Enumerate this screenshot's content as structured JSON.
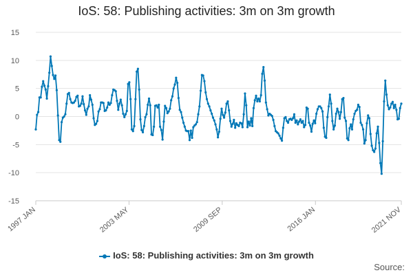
{
  "chart_data": {
    "type": "line",
    "title": "IoS: 58: Publishing activities: 3m on 3m growth",
    "xlabel": "",
    "ylabel": "",
    "ylim": [
      -15,
      15
    ],
    "yticks": [
      15,
      10,
      5,
      0,
      -5,
      -10,
      -15
    ],
    "xticks": [
      "1997 JAN",
      "2003 MAY",
      "2009 SEP",
      "2016 JAN",
      "2021 NOV"
    ],
    "x_start": "1997 JAN",
    "x_end": "2021 NOV",
    "grid": true,
    "legend_position": "bottom",
    "series": [
      {
        "name": "IoS: 58: Publishing activities: 3m on 3m growth",
        "color": "#0077b6",
        "values": [
          -2.3,
          0.3,
          0.8,
          3.4,
          3.4,
          5.3,
          6.3,
          5.5,
          4.8,
          3.2,
          5.4,
          7.8,
          10.7,
          9.0,
          7.4,
          6.7,
          7.3,
          4.7,
          0.2,
          -4.2,
          -4.5,
          -1.0,
          -0.2,
          0.0,
          0.4,
          2.3,
          4.0,
          4.2,
          3.1,
          2.5,
          2.4,
          2.5,
          2.8,
          3.5,
          3.7,
          1.8,
          1.9,
          2.3,
          3.6,
          2.2,
          1.1,
          0.3,
          1.4,
          1.8,
          3.8,
          3.0,
          2.1,
          -0.3,
          -1.5,
          -1.3,
          -0.8,
          0.9,
          1.3,
          2.5,
          2.5,
          2.4,
          1.0,
          1.1,
          1.6,
          2.5,
          2.1,
          2.4,
          3.8,
          4.8,
          4.7,
          4.5,
          2.8,
          1.2,
          2.3,
          3.0,
          2.0,
          0.5,
          -0.1,
          0.4,
          1.0,
          5.8,
          6.1,
          3.1,
          -2.3,
          -2.6,
          -1.7,
          3.1,
          8.0,
          8.5,
          4.8,
          -0.5,
          -2.4,
          -2.8,
          -1.7,
          -0.1,
          0.4,
          2.1,
          3.2,
          2.0,
          -3.2,
          -3.3,
          -1.8,
          1.9,
          2.0,
          1.6,
          2.1,
          -1.8,
          -2.4,
          -4.1,
          -0.9,
          1.9,
          1.5,
          0.6,
          0.9,
          1.4,
          2.9,
          3.6,
          5.0,
          5.7,
          6.9,
          6.0,
          3.3,
          1.2,
          0.8,
          -0.2,
          -1.1,
          -1.8,
          -2.5,
          -2.6,
          -2.6,
          -4.2,
          -2.5,
          -3.8,
          -1.9,
          -1.6,
          -1.4,
          -1.0,
          0.4,
          1.8,
          4.6,
          7.4,
          7.3,
          6.3,
          4.3,
          3.1,
          2.3,
          1.8,
          1.1,
          0.5,
          -0.2,
          -0.7,
          -1.4,
          -2.3,
          -3.7,
          -2.7,
          -0.4,
          1.4,
          0.3,
          -0.2,
          0.7,
          2.3,
          2.7,
          1.1,
          -0.8,
          -1.8,
          -1.3,
          -0.6,
          -2.0,
          -1.2,
          -1.5,
          -1.7,
          -1.1,
          -1.2,
          -1.9,
          0.4,
          4.1,
          2.0,
          -1.9,
          -0.9,
          -1.6,
          -0.3,
          -1.7,
          1.5,
          2.9,
          3.7,
          2.7,
          3.2,
          2.7,
          3.8,
          7.6,
          8.8,
          6.4,
          2.5,
          1.3,
          0.2,
          0.5,
          0.3,
          0.1,
          -0.6,
          -1.7,
          -2.6,
          -2.8,
          -3.0,
          -3.4,
          -3.9,
          -4.3,
          -2.0,
          -0.3,
          -0.1,
          -0.8,
          -1.1,
          -0.5,
          -0.4,
          -0.6,
          -0.3,
          0.4,
          -1.1,
          -0.7,
          -1.4,
          -0.9,
          -0.5,
          -1.1,
          -0.8,
          -1.9,
          -1.5,
          1.6,
          1.4,
          -1.1,
          -1.6,
          -2.7,
          -1.3,
          -0.7,
          -1.2,
          0.5,
          1.3,
          1.8,
          1.8,
          1.5,
          0.9,
          -2.0,
          -3.6,
          -3.8,
          -0.1,
          1.8,
          3.9,
          2.3,
          -0.8,
          -2.3,
          -1.6,
          0.5,
          1.4,
          0.8,
          -0.4,
          0.8,
          3.1,
          3.3,
          -0.2,
          -0.8,
          -3.9,
          -4.2,
          -2.1,
          -1.4,
          -2.3,
          -0.5,
          0.5,
          1.0,
          1.2,
          2.1,
          1.7,
          -1.1,
          -1.5,
          -2.3,
          -4.8,
          -4.2,
          -1.2,
          0.2,
          -0.3,
          -3.1,
          -5.2,
          -6.0,
          -6.3,
          -5.7,
          -3.0,
          -1.8,
          -4.7,
          -8.3,
          -10.2,
          -4.4,
          2.7,
          6.4,
          3.9,
          2.0,
          1.3,
          1.6,
          2.3,
          2.6,
          1.5,
          2.1,
          1.2,
          -0.5,
          -0.4,
          1.5,
          2.3
        ]
      }
    ]
  },
  "legend": {
    "label": "IoS: 58: Publishing activities: 3m on 3m growth"
  },
  "source": {
    "label": "Source:"
  }
}
